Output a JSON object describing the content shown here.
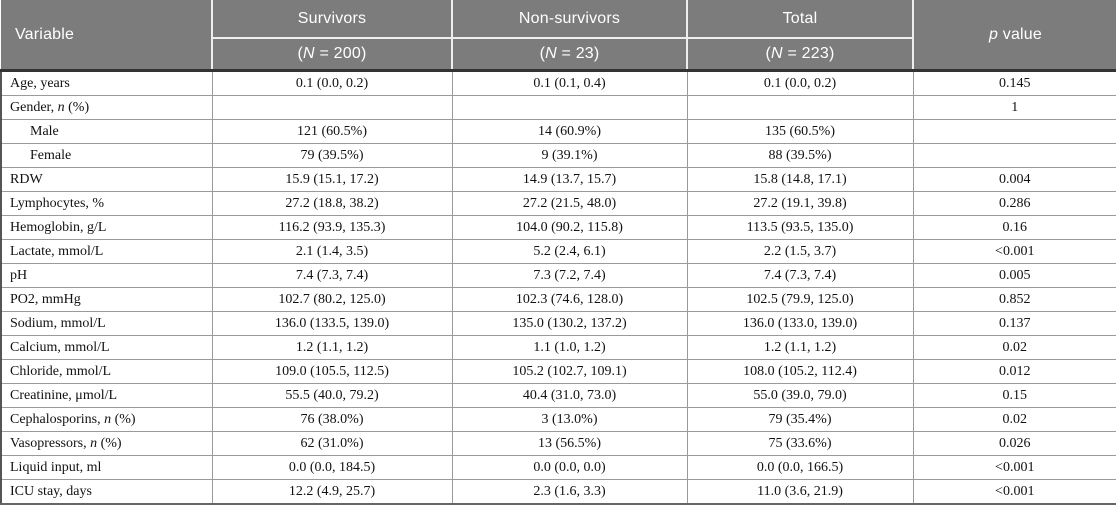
{
  "colors": {
    "header_bg": "#7c7c7c",
    "header_text": "#ffffff",
    "header_separator": "#eeeeee",
    "heavy_rule": "#333333",
    "grid_line": "#9a9a9a",
    "body_text": "#111111"
  },
  "table": {
    "header": {
      "variable": "Variable",
      "groups": [
        {
          "label": "Survivors",
          "sub": "(*N* = 200)"
        },
        {
          "label": "Non-survivors",
          "sub": "(*N* = 23)"
        },
        {
          "label": "Total",
          "sub": "(*N* = 223)"
        }
      ],
      "p_value": "*p* value"
    },
    "rows": [
      {
        "variable": "Age, years",
        "indent": false,
        "survivors": "0.1 (0.0, 0.2)",
        "nonsurvivors": "0.1 (0.1, 0.4)",
        "total": "0.1 (0.0, 0.2)",
        "p": "0.145"
      },
      {
        "variable": "Gender, *n* (%)",
        "indent": false,
        "survivors": "",
        "nonsurvivors": "",
        "total": "",
        "p": "1"
      },
      {
        "variable": "Male",
        "indent": true,
        "survivors": "121 (60.5%)",
        "nonsurvivors": "14 (60.9%)",
        "total": "135 (60.5%)",
        "p": ""
      },
      {
        "variable": "Female",
        "indent": true,
        "survivors": "79 (39.5%)",
        "nonsurvivors": "9 (39.1%)",
        "total": "88 (39.5%)",
        "p": ""
      },
      {
        "variable": "RDW",
        "indent": false,
        "survivors": "15.9 (15.1, 17.2)",
        "nonsurvivors": "14.9 (13.7, 15.7)",
        "total": "15.8 (14.8, 17.1)",
        "p": "0.004"
      },
      {
        "variable": "Lymphocytes, %",
        "indent": false,
        "survivors": "27.2 (18.8, 38.2)",
        "nonsurvivors": "27.2 (21.5, 48.0)",
        "total": "27.2 (19.1, 39.8)",
        "p": "0.286"
      },
      {
        "variable": "Hemoglobin, g/L",
        "indent": false,
        "survivors": "116.2 (93.9, 135.3)",
        "nonsurvivors": "104.0 (90.2, 115.8)",
        "total": "113.5 (93.5, 135.0)",
        "p": "0.16"
      },
      {
        "variable": "Lactate, mmol/L",
        "indent": false,
        "survivors": "2.1 (1.4, 3.5)",
        "nonsurvivors": "5.2 (2.4, 6.1)",
        "total": "2.2 (1.5, 3.7)",
        "p": "<0.001"
      },
      {
        "variable": "pH",
        "indent": false,
        "survivors": "7.4 (7.3, 7.4)",
        "nonsurvivors": "7.3 (7.2, 7.4)",
        "total": "7.4 (7.3, 7.4)",
        "p": "0.005"
      },
      {
        "variable": "PO2, mmHg",
        "indent": false,
        "survivors": "102.7 (80.2, 125.0)",
        "nonsurvivors": "102.3 (74.6, 128.0)",
        "total": "102.5 (79.9, 125.0)",
        "p": "0.852"
      },
      {
        "variable": "Sodium, mmol/L",
        "indent": false,
        "survivors": "136.0 (133.5, 139.0)",
        "nonsurvivors": "135.0 (130.2, 137.2)",
        "total": "136.0 (133.0, 139.0)",
        "p": "0.137"
      },
      {
        "variable": "Calcium, mmol/L",
        "indent": false,
        "survivors": "1.2 (1.1, 1.2)",
        "nonsurvivors": "1.1 (1.0, 1.2)",
        "total": "1.2 (1.1, 1.2)",
        "p": "0.02"
      },
      {
        "variable": "Chloride, mmol/L",
        "indent": false,
        "survivors": "109.0 (105.5, 112.5)",
        "nonsurvivors": "105.2 (102.7, 109.1)",
        "total": "108.0 (105.2, 112.4)",
        "p": "0.012"
      },
      {
        "variable": "Creatinine, μmol/L",
        "indent": false,
        "survivors": "55.5 (40.0, 79.2)",
        "nonsurvivors": "40.4 (31.0, 73.0)",
        "total": "55.0 (39.0, 79.0)",
        "p": "0.15"
      },
      {
        "variable": "Cephalosporins, *n* (%)",
        "indent": false,
        "survivors": "76 (38.0%)",
        "nonsurvivors": "3 (13.0%)",
        "total": "79 (35.4%)",
        "p": "0.02"
      },
      {
        "variable": "Vasopressors, *n* (%)",
        "indent": false,
        "survivors": "62 (31.0%)",
        "nonsurvivors": "13 (56.5%)",
        "total": "75 (33.6%)",
        "p": "0.026"
      },
      {
        "variable": "Liquid input, ml",
        "indent": false,
        "survivors": "0.0 (0.0, 184.5)",
        "nonsurvivors": "0.0 (0.0, 0.0)",
        "total": "0.0 (0.0, 166.5)",
        "p": "<0.001"
      },
      {
        "variable": "ICU stay, days",
        "indent": false,
        "survivors": "12.2 (4.9, 25.7)",
        "nonsurvivors": "2.3 (1.6, 3.3)",
        "total": "11.0 (3.6, 21.9)",
        "p": "<0.001"
      }
    ]
  }
}
